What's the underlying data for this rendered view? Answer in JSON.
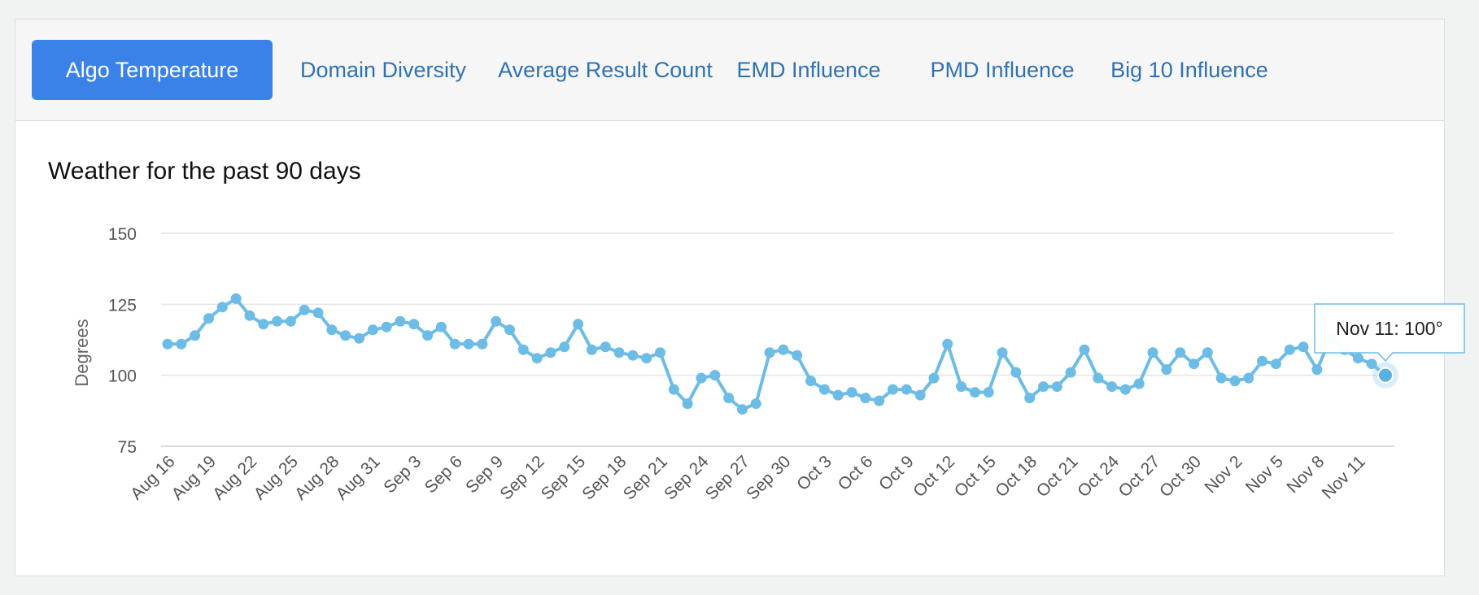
{
  "tabs": [
    {
      "label": "Algo Temperature",
      "active": true
    },
    {
      "label": "Domain Diversity",
      "active": false
    },
    {
      "label": "Average Result Count",
      "active": false
    },
    {
      "label": "EMD Influence",
      "active": false
    },
    {
      "label": "PMD Influence",
      "active": false
    },
    {
      "label": "Big 10 Influence",
      "active": false
    }
  ],
  "colors": {
    "accent": "#3b82e8",
    "line": "#6cbce6",
    "tab_text": "#2f72b2"
  },
  "chart_data": {
    "type": "line",
    "title": "Weather for the past 90 days",
    "ylabel": "Degrees",
    "xlabel": "",
    "ylim": [
      75,
      150
    ],
    "yticks": [
      75,
      100,
      125,
      150
    ],
    "x_tick_labels": [
      "Aug 16",
      "Aug 19",
      "Aug 22",
      "Aug 25",
      "Aug 28",
      "Aug 31",
      "Sep 3",
      "Sep 6",
      "Sep 9",
      "Sep 12",
      "Sep 15",
      "Sep 18",
      "Sep 21",
      "Sep 24",
      "Sep 27",
      "Sep 30",
      "Oct 3",
      "Oct 6",
      "Oct 9",
      "Oct 12",
      "Oct 15",
      "Oct 18",
      "Oct 21",
      "Oct 24",
      "Oct 27",
      "Oct 30",
      "Nov 2",
      "Nov 5",
      "Nov 8",
      "Nov 11"
    ],
    "series": [
      {
        "name": "Algo Temperature",
        "values": [
          111,
          111,
          114,
          120,
          124,
          127,
          121,
          118,
          119,
          119,
          123,
          122,
          116,
          114,
          113,
          116,
          117,
          119,
          118,
          114,
          117,
          111,
          111,
          111,
          119,
          116,
          109,
          106,
          108,
          110,
          118,
          109,
          110,
          108,
          107,
          106,
          108,
          95,
          90,
          99,
          100,
          92,
          88,
          90,
          108,
          109,
          107,
          98,
          95,
          93,
          94,
          92,
          91,
          95,
          95,
          93,
          99,
          111,
          96,
          94,
          94,
          108,
          101,
          92,
          96,
          96,
          101,
          109,
          99,
          96,
          95,
          97,
          108,
          102,
          108,
          104,
          108,
          99,
          98,
          99,
          105,
          104,
          109,
          110,
          102,
          113,
          109,
          106,
          104,
          100
        ]
      }
    ],
    "tooltip": {
      "text": "Nov 11: 100°",
      "index": 89
    }
  }
}
